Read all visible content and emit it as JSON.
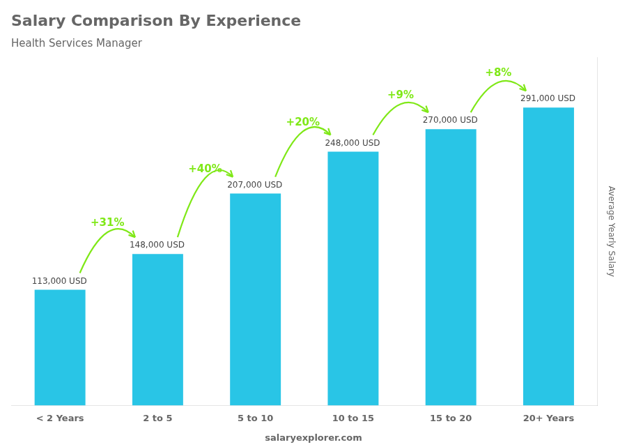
{
  "chart_data": {
    "type": "bar",
    "title": "Salary Comparison By Experience",
    "subtitle": "Health Services Manager",
    "categories": [
      "< 2 Years",
      "2 to 5",
      "5 to 10",
      "10 to 15",
      "15 to 20",
      "20+ Years"
    ],
    "values": [
      113000,
      148000,
      207000,
      248000,
      270000,
      291000
    ],
    "value_labels": [
      "113,000 USD",
      "148,000 USD",
      "207,000 USD",
      "248,000 USD",
      "270,000 USD",
      "291,000 USD"
    ],
    "data_labels": true,
    "color": "#29C5E6",
    "ylabel": "Average Yearly Salary",
    "ylim": [
      0,
      340000
    ],
    "tick_labels": "x",
    "grid": false,
    "annotations": [
      {
        "text": "+31%",
        "color": "#7FE817"
      },
      {
        "text": "+40%",
        "color": "#7FE817"
      },
      {
        "text": "+20%",
        "color": "#7FE817"
      },
      {
        "text": "+9%",
        "color": "#7FE817"
      },
      {
        "text": "+8%",
        "color": "#7FE817"
      }
    ],
    "footer": "salaryexplorer.com"
  }
}
